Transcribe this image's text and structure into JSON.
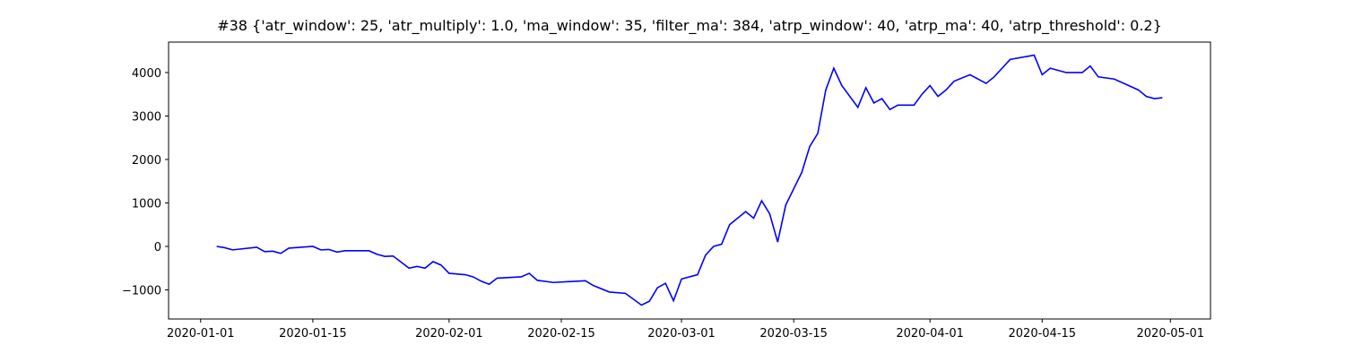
{
  "chart_data": {
    "type": "line",
    "title": "#38 {'atr_window': 25, 'atr_multiply': 1.0, 'ma_window': 35, 'filter_ma': 384, 'atrp_window': 40, 'atrp_ma': 40, 'atrp_threshold': 0.2}",
    "x": [
      "2020-01-03",
      "2020-01-04",
      "2020-01-05",
      "2020-01-08",
      "2020-01-09",
      "2020-01-10",
      "2020-01-11",
      "2020-01-12",
      "2020-01-15",
      "2020-01-16",
      "2020-01-17",
      "2020-01-18",
      "2020-01-19",
      "2020-01-22",
      "2020-01-23",
      "2020-01-24",
      "2020-01-25",
      "2020-01-27",
      "2020-01-28",
      "2020-01-29",
      "2020-01-30",
      "2020-01-31",
      "2020-02-01",
      "2020-02-03",
      "2020-02-04",
      "2020-02-05",
      "2020-02-06",
      "2020-02-07",
      "2020-02-10",
      "2020-02-11",
      "2020-02-12",
      "2020-02-14",
      "2020-02-18",
      "2020-02-19",
      "2020-02-21",
      "2020-02-23",
      "2020-02-25",
      "2020-02-26",
      "2020-02-27",
      "2020-02-28",
      "2020-02-29",
      "2020-03-01",
      "2020-03-03",
      "2020-03-04",
      "2020-03-05",
      "2020-03-06",
      "2020-03-07",
      "2020-03-09",
      "2020-03-10",
      "2020-03-11",
      "2020-03-12",
      "2020-03-13",
      "2020-03-14",
      "2020-03-16",
      "2020-03-17",
      "2020-03-18",
      "2020-03-19",
      "2020-03-20",
      "2020-03-21",
      "2020-03-23",
      "2020-03-24",
      "2020-03-25",
      "2020-03-26",
      "2020-03-27",
      "2020-03-28",
      "2020-03-30",
      "2020-03-31",
      "2020-04-01",
      "2020-04-02",
      "2020-04-03",
      "2020-04-04",
      "2020-04-06",
      "2020-04-08",
      "2020-04-09",
      "2020-04-10",
      "2020-04-11",
      "2020-04-14",
      "2020-04-15",
      "2020-04-16",
      "2020-04-18",
      "2020-04-20",
      "2020-04-21",
      "2020-04-22",
      "2020-04-24",
      "2020-04-27",
      "2020-04-28",
      "2020-04-29",
      "2020-04-30"
    ],
    "series": [
      {
        "color": "#0000ff",
        "values": [
          0,
          -30,
          -80,
          -20,
          -120,
          -110,
          -160,
          -40,
          0,
          -80,
          -70,
          -130,
          -100,
          -100,
          -180,
          -230,
          -220,
          -500,
          -460,
          -500,
          -350,
          -430,
          -620,
          -650,
          -700,
          -800,
          -870,
          -730,
          -700,
          -620,
          -780,
          -830,
          -790,
          -900,
          -1050,
          -1080,
          -1350,
          -1260,
          -950,
          -850,
          -1250,
          -750,
          -650,
          -200,
          0,
          50,
          500,
          800,
          650,
          1050,
          750,
          100,
          950,
          1700,
          2300,
          2600,
          3600,
          4100,
          3700,
          3200,
          3650,
          3300,
          3400,
          3150,
          3250,
          3250,
          3500,
          3700,
          3450,
          3600,
          3800,
          3950,
          3750,
          3900,
          4100,
          4300,
          4400,
          3950,
          4100,
          4000,
          4000,
          4150,
          3900,
          3850,
          3600,
          3450,
          3400,
          3420
        ]
      }
    ],
    "xlim": [
      "2019-12-28",
      "2020-05-06"
    ],
    "xticks": [
      "2020-01-01",
      "2020-01-15",
      "2020-02-01",
      "2020-02-15",
      "2020-03-01",
      "2020-03-15",
      "2020-04-01",
      "2020-04-15",
      "2020-05-01"
    ],
    "ylim": [
      -1670,
      4700
    ],
    "yticks": [
      {
        "value": -1000,
        "label": "−1000"
      },
      0,
      1000,
      2000,
      3000,
      4000
    ]
  }
}
